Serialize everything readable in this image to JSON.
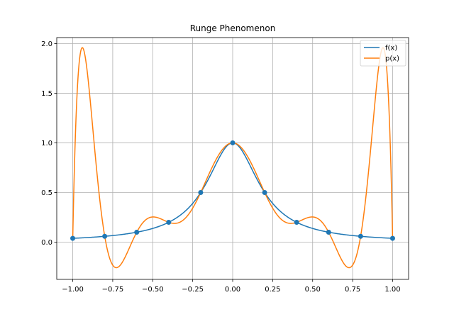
{
  "chart_data": {
    "type": "line",
    "title": "Runge Phenomenon",
    "xlabel": "",
    "ylabel": "",
    "xlim": [
      -1.1,
      1.1
    ],
    "ylim": [
      -0.375,
      2.06
    ],
    "xticks": [
      -1.0,
      -0.75,
      -0.5,
      -0.25,
      0.0,
      0.25,
      0.5,
      0.75,
      1.0
    ],
    "xtick_labels": [
      "−1.00",
      "−0.75",
      "−0.50",
      "−0.25",
      "0.00",
      "0.25",
      "0.50",
      "0.75",
      "1.00"
    ],
    "yticks": [
      0.0,
      0.5,
      1.0,
      1.5,
      2.0
    ],
    "ytick_labels": [
      "0.0",
      "0.5",
      "1.0",
      "1.5",
      "2.0"
    ],
    "grid": true,
    "legend": "top-right",
    "series": [
      {
        "name": "f(x)",
        "color": "#1f77b4",
        "function": "1/(1+25*x^2)",
        "x_range": [
          -1.0,
          1.0
        ]
      },
      {
        "name": "p(x)",
        "color": "#ff7f0e",
        "function": "degree-10 polynomial interpolating f at the nodes",
        "x_range": [
          -1.0,
          1.0
        ]
      }
    ],
    "nodes": {
      "color": "#1f77b4",
      "x": [
        -1.0,
        -0.8,
        -0.6,
        -0.4,
        -0.2,
        0.0,
        0.2,
        0.4,
        0.6,
        0.8,
        1.0
      ],
      "y": [
        0.0385,
        0.0588,
        0.1,
        0.2,
        0.5,
        1.0,
        0.5,
        0.2,
        0.1,
        0.0588,
        0.0385
      ]
    }
  }
}
